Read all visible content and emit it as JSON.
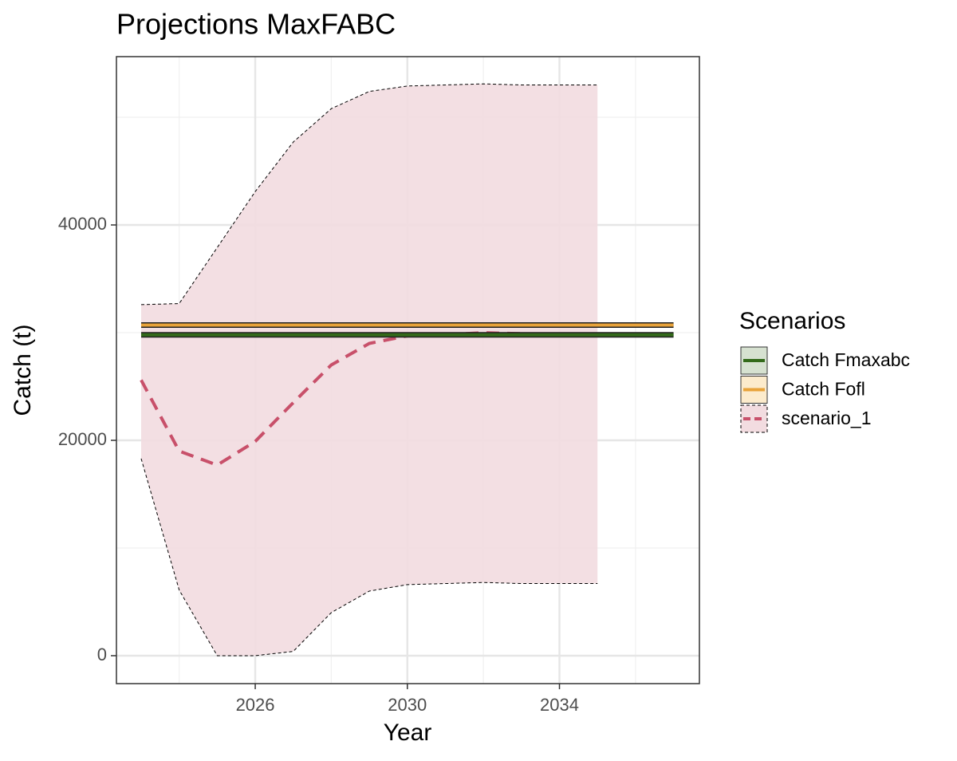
{
  "chart_data": {
    "type": "line",
    "title": "Projections MaxFABC",
    "x_label": "Year",
    "y_label": "Catch (t)",
    "legend_title": "Scenarios",
    "legend_position": "right",
    "xlim": [
      2022.35,
      2037.68
    ],
    "ylim": [
      -2593,
      55630
    ],
    "xticks": [
      2026,
      2030,
      2034
    ],
    "yticks": [
      0,
      20000,
      40000
    ],
    "x_minor_ticks": [
      2024,
      2028,
      2032,
      2036
    ],
    "y_minor_ticks": [
      10000,
      30000,
      50000
    ],
    "grid": true,
    "series": [
      {
        "name": "Catch Fmaxabc",
        "color": "#336a1a",
        "fill": "#d6e1d0",
        "x": [
          2023,
          2037
        ],
        "values": [
          29800,
          29800
        ]
      },
      {
        "name": "Catch Fofl",
        "color": "#e8a33a",
        "fill": "#fcebcc",
        "x": [
          2023,
          2037
        ],
        "values": [
          30700,
          30700
        ]
      },
      {
        "name": "scenario_1",
        "color": "#c8506a",
        "fill": "#f2dce0",
        "dashed": true,
        "x": [
          2023,
          2024,
          2025,
          2026,
          2027,
          2028,
          2029,
          2030,
          2031,
          2032,
          2033,
          2034,
          2035
        ],
        "values": [
          25600,
          19000,
          17700,
          19900,
          23500,
          27000,
          29000,
          29700,
          29800,
          30000,
          29900,
          29800,
          29800
        ],
        "lower": [
          18300,
          6100,
          0,
          0,
          400,
          4000,
          6000,
          6600,
          6700,
          6800,
          6700,
          6700,
          6700
        ],
        "upper": [
          32600,
          32700,
          37900,
          43100,
          47700,
          50800,
          52400,
          52900,
          53000,
          53100,
          53000,
          53000,
          53000
        ]
      }
    ]
  }
}
